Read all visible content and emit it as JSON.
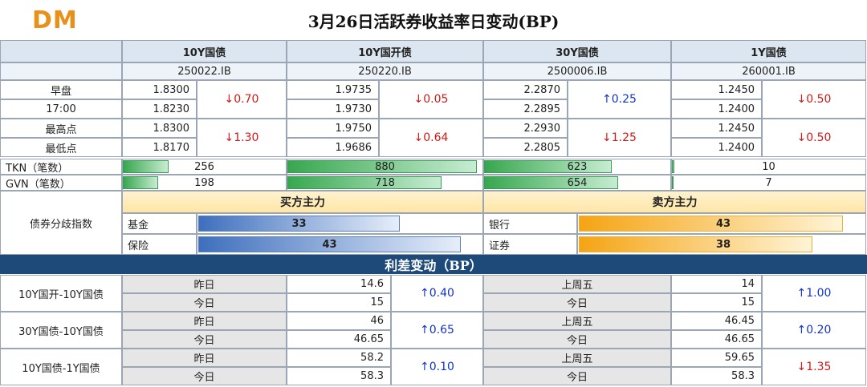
{
  "logo": "DM",
  "title": "3月26日活跃券收益率日变动(BP)",
  "columns": [
    {
      "name": "10Y国债",
      "code": "250022.IB",
      "r1a": "1.8300",
      "r1b": "1.8230",
      "ch1": "↓0.70",
      "r2a": "1.8300",
      "r2b": "1.8170",
      "ch2": "↓1.30",
      "tkn": "256",
      "gvn": "198",
      "tknval": 256,
      "gvnval": 198
    },
    {
      "name": "10Y国开债",
      "code": "250220.IB",
      "r1a": "1.9735",
      "r1b": "1.9730",
      "ch1": "↓0.05",
      "r2a": "1.9750",
      "r2b": "1.9686",
      "ch2": "↓0.64",
      "tkn": "880",
      "gvn": "718",
      "tknval": 880,
      "gvnval": 718
    },
    {
      "name": "30Y国债",
      "code": "2500006.IB",
      "r1a": "2.2870",
      "r1b": "2.2895",
      "ch1": "↑0.25",
      "r2a": "2.2930",
      "r2b": "2.2805",
      "ch2": "↓1.25",
      "tkn": "623",
      "gvn": "654",
      "tknval": 623,
      "gvnval": 654
    },
    {
      "name": "1Y国债",
      "code": "260001.IB",
      "r1a": "1.2450",
      "r1b": "1.2400",
      "ch1": "↓0.50",
      "r2a": "1.2450",
      "r2b": "1.2400",
      "ch2": "↓0.50",
      "tkn": "10",
      "gvn": "7",
      "tknval": 10,
      "gvnval": 7
    }
  ],
  "rowlabels": {
    "open": "早盘",
    "t1700": "17:00",
    "high": "最高点",
    "low": "最低点",
    "tkn": "TKN（笔数）",
    "gvn": "GVN（笔数）",
    "div": "债券分歧指数"
  },
  "buy": {
    "title": "买方主力",
    "items": [
      {
        "label": "基金",
        "value": "33",
        "v": 33
      },
      {
        "label": "保险",
        "value": "43",
        "v": 43
      }
    ]
  },
  "sell": {
    "title": "卖方主力",
    "items": [
      {
        "label": "银行",
        "value": "43",
        "v": 43
      },
      {
        "label": "证券",
        "value": "38",
        "v": 38
      }
    ]
  },
  "spread_title": "利差变动（BP）",
  "spreads": [
    {
      "name": "10Y国开-10Y国债",
      "l1": "昨日",
      "v1": "14.6",
      "l2": "今日",
      "v2": "15",
      "ch": "↑0.40",
      "r1": "上周五",
      "rv1": "14",
      "r2": "今日",
      "rv2": "15",
      "rch": "↑1.00"
    },
    {
      "name": "30Y国债-10Y国债",
      "l1": "昨日",
      "v1": "46",
      "l2": "今日",
      "v2": "46.65",
      "ch": "↑0.65",
      "r1": "上周五",
      "rv1": "46.45",
      "r2": "今日",
      "rv2": "46.65",
      "rch": "↑0.20"
    },
    {
      "name": "10Y国债-1Y国债",
      "l1": "昨日",
      "v1": "58.2",
      "l2": "今日",
      "v2": "58.3",
      "ch": "↑0.10",
      "r1": "上周五",
      "rv1": "59.65",
      "r2": "今日",
      "rv2": "58.3",
      "rch": "↓1.35"
    }
  ]
}
